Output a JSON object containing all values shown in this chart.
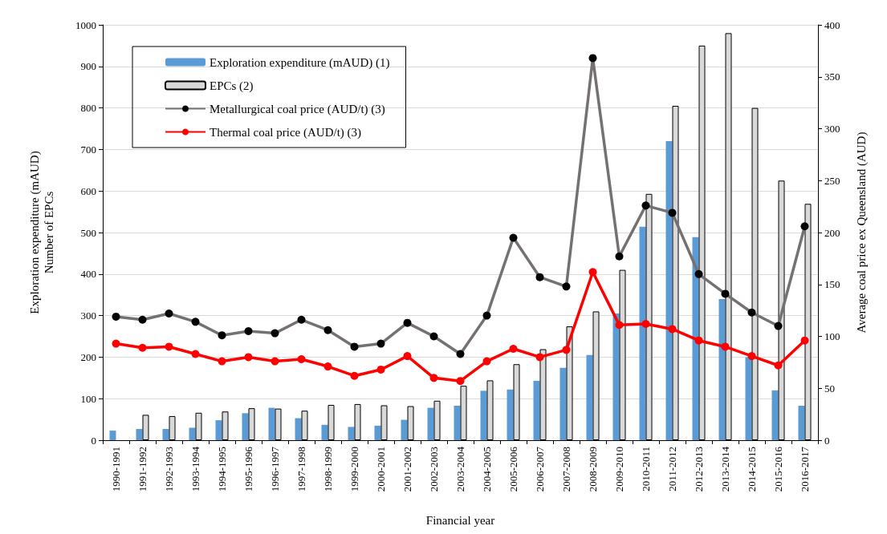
{
  "chart_data": {
    "type": "bar",
    "xlabel": "Financial year",
    "ylabel": "Exploration expenditure (mAUD)\nNumber of EPCs",
    "y2label": "Average coal price ex Queensland (AUD)",
    "categories": [
      "1990-1991",
      "1991-1992",
      "1992-1993",
      "1993-1994",
      "1994-1995",
      "1995-1996",
      "1996-1997",
      "1997-1998",
      "1998-1999",
      "1999-2000",
      "2000-2001",
      "2001-2002",
      "2002-2003",
      "2003-2004",
      "2004-2005",
      "2005-2006",
      "2006-2007",
      "2007-2008",
      "2008-2009",
      "2009-2010",
      "2010-2011",
      "2011-2012",
      "2012-2013",
      "2013-2014",
      "2014-2015",
      "2015-2016",
      "2016-2017"
    ],
    "series": [
      {
        "name": "Exploration expenditure (mAUD) (1)",
        "color": "#5b9bd5",
        "values": [
          23,
          27,
          27,
          30,
          48,
          65,
          78,
          53,
          37,
          32,
          35,
          49,
          78,
          83,
          119,
          122,
          143,
          174,
          205,
          305,
          514,
          720,
          489,
          340,
          200,
          120,
          83
        ]
      },
      {
        "name": "EPCs (2)",
        "color": "#d9d9d9",
        "values": [
          null,
          61,
          58,
          66,
          69,
          77,
          76,
          71,
          85,
          87,
          84,
          82,
          95,
          131,
          144,
          183,
          219,
          274,
          310,
          410,
          593,
          805,
          950,
          980,
          800,
          625,
          569
        ]
      },
      {
        "name": "Metallurgical coal price (AUD/t) (3)",
        "type": "line",
        "axis": "y2",
        "color": "#767171",
        "values": [
          119,
          116,
          122,
          114,
          101,
          105,
          103,
          116,
          106,
          90,
          93,
          113,
          100,
          83,
          120,
          195,
          157,
          148,
          368,
          177,
          226,
          219,
          160,
          141,
          123,
          110,
          206
        ]
      },
      {
        "name": "Thermal coal price (AUD/t) (3)",
        "type": "line",
        "axis": "y2",
        "color": "#ff0000",
        "values": [
          93,
          89,
          90,
          83,
          76,
          80,
          76,
          78,
          71,
          62,
          68,
          81,
          60,
          57,
          76,
          88,
          80,
          87,
          162,
          111,
          112,
          107,
          96,
          90,
          81,
          72,
          96
        ]
      }
    ],
    "ylim": [
      0,
      1000
    ],
    "yticks": [
      0,
      100,
      200,
      300,
      400,
      500,
      600,
      700,
      800,
      900,
      1000
    ],
    "y2lim": [
      0,
      400
    ],
    "y2ticks": [
      0,
      50,
      100,
      150,
      200,
      250,
      300,
      350,
      400
    ],
    "grid": "y",
    "legend": "top left",
    "marker": "circle"
  }
}
